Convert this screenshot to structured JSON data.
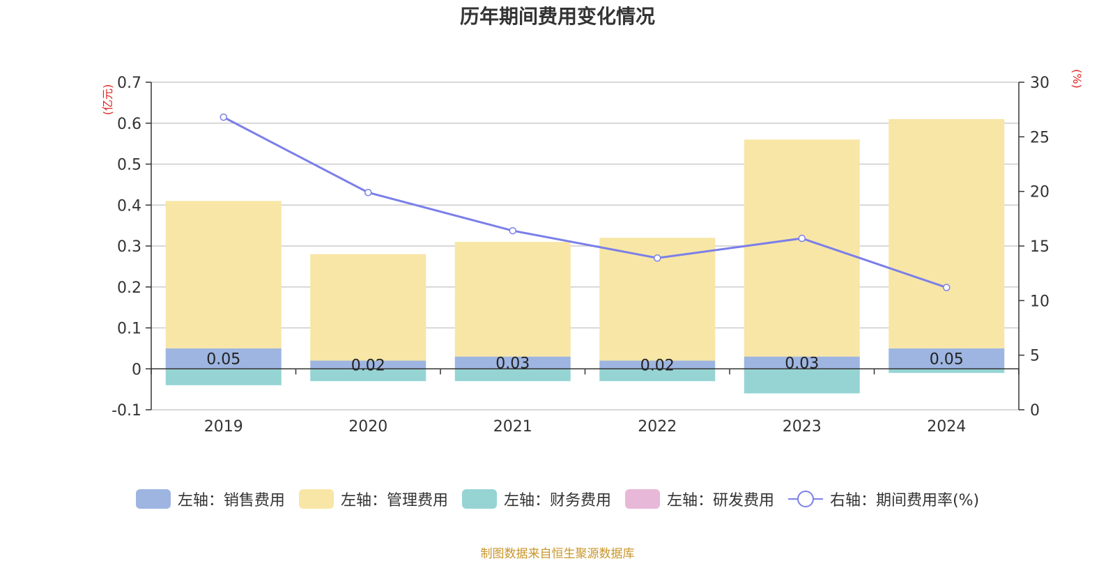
{
  "chart_data": {
    "type": "bar",
    "title": "历年期间费用变化情况",
    "categories": [
      "2019",
      "2020",
      "2021",
      "2022",
      "2023",
      "2024"
    ],
    "left_axis": {
      "unit": "(亿元)",
      "ylim": [
        -0.1,
        0.7
      ],
      "ticks": [
        "-0.1",
        "0",
        "0.1",
        "0.2",
        "0.3",
        "0.4",
        "0.5",
        "0.6",
        "0.7"
      ]
    },
    "right_axis": {
      "unit": "(%)",
      "ylim": [
        0,
        30
      ],
      "ticks": [
        "0",
        "5",
        "10",
        "15",
        "20",
        "25",
        "30"
      ]
    },
    "series": [
      {
        "name": "左轴：销售费用",
        "type": "bar",
        "axis": "left",
        "color": "#9db5e0",
        "values": [
          0.05,
          0.02,
          0.03,
          0.02,
          0.03,
          0.05
        ],
        "labels": [
          "0.05",
          "0.02",
          "0.03",
          "0.02",
          "0.03",
          "0.05"
        ]
      },
      {
        "name": "左轴：管理费用",
        "type": "bar",
        "axis": "left",
        "color": "#f8e6a6",
        "values": [
          0.36,
          0.26,
          0.28,
          0.3,
          0.53,
          0.56
        ]
      },
      {
        "name": "左轴：财务费用",
        "type": "bar",
        "axis": "left",
        "color": "#96d4d4",
        "values": [
          -0.04,
          -0.03,
          -0.03,
          -0.03,
          -0.06,
          -0.01
        ]
      },
      {
        "name": "左轴：研发费用",
        "type": "bar",
        "axis": "left",
        "color": "#e8b8d8",
        "values": [
          0,
          0,
          0,
          0,
          0,
          0
        ]
      },
      {
        "name": "右轴：期间费用率(%)",
        "type": "line",
        "axis": "right",
        "color": "#7b7fe8",
        "values": [
          26.8,
          19.9,
          16.4,
          13.9,
          15.7,
          11.2
        ]
      }
    ],
    "grid": true,
    "legend_position": "bottom"
  },
  "source_note": "制图数据来自恒生聚源数据库"
}
